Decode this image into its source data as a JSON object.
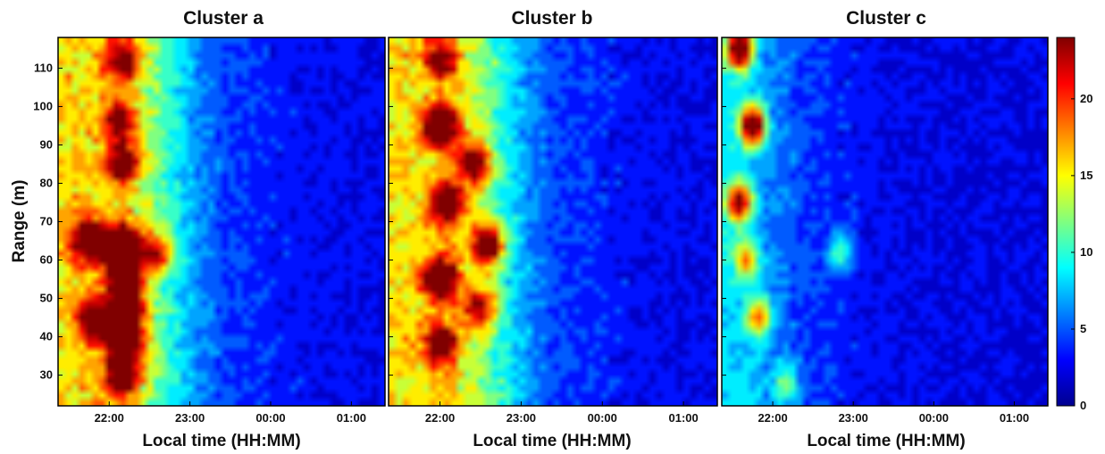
{
  "chart_data": {
    "type": "heatmap",
    "panels": [
      {
        "title": "Cluster a",
        "xlabel": "Local time (HH:MM)",
        "ylabel": "Range (m)",
        "xticks": [
          "22:00",
          "23:00",
          "00:00",
          "01:00"
        ],
        "yticks": [
          30,
          40,
          50,
          60,
          70,
          80,
          90,
          100,
          110
        ],
        "ylim": [
          22,
          118
        ],
        "blobs": [
          {
            "t": "22:10",
            "r": 64,
            "v": 23
          },
          {
            "t": "22:10",
            "r": 57,
            "v": 21
          },
          {
            "t": "22:13",
            "r": 48,
            "v": 21
          },
          {
            "t": "22:12",
            "r": 39,
            "v": 24
          },
          {
            "t": "21:50",
            "r": 44,
            "v": 18
          },
          {
            "t": "21:45",
            "r": 65,
            "v": 20
          },
          {
            "t": "22:10",
            "r": 30,
            "v": 17
          },
          {
            "t": "22:10",
            "r": 85,
            "v": 14
          },
          {
            "t": "22:10",
            "r": 112,
            "v": 13
          },
          {
            "t": "22:35",
            "r": 62,
            "v": 13
          },
          {
            "t": "22:08",
            "r": 96,
            "v": 12
          }
        ]
      },
      {
        "title": "Cluster b",
        "xlabel": "Local time (HH:MM)",
        "ylabel": "",
        "xticks": [
          "22:00",
          "23:00",
          "00:00",
          "01:00"
        ],
        "yticks": [],
        "ylim": [
          22,
          118
        ],
        "blobs": [
          {
            "t": "22:00",
            "r": 95,
            "v": 22
          },
          {
            "t": "22:00",
            "r": 55,
            "v": 21
          },
          {
            "t": "22:35",
            "r": 64,
            "v": 20
          },
          {
            "t": "22:25",
            "r": 85,
            "v": 16
          },
          {
            "t": "22:05",
            "r": 75,
            "v": 16
          },
          {
            "t": "22:00",
            "r": 112,
            "v": 12
          },
          {
            "t": "22:30",
            "r": 48,
            "v": 13
          },
          {
            "t": "22:00",
            "r": 38,
            "v": 14
          }
        ]
      },
      {
        "title": "Cluster c",
        "xlabel": "Local time (HH:MM)",
        "ylabel": "",
        "xticks": [
          "22:00",
          "23:00",
          "00:00",
          "01:00"
        ],
        "yticks": [],
        "ylim": [
          22,
          118
        ],
        "blobs": [
          {
            "t": "21:45",
            "r": 95,
            "v": 25
          },
          {
            "t": "21:35",
            "r": 115,
            "v": 25
          },
          {
            "t": "21:35",
            "r": 75,
            "v": 19
          },
          {
            "t": "21:50",
            "r": 45,
            "v": 13
          },
          {
            "t": "21:40",
            "r": 60,
            "v": 11
          },
          {
            "t": "22:50",
            "r": 62,
            "v": 9
          },
          {
            "t": "22:10",
            "r": 28,
            "v": 8
          }
        ]
      }
    ],
    "colorbar": {
      "ticks": [
        0,
        5,
        10,
        15,
        20
      ],
      "range": [
        0,
        24
      ],
      "colormap": "jet"
    },
    "colors": {
      "low": "#00008f",
      "high": "#800000"
    }
  }
}
